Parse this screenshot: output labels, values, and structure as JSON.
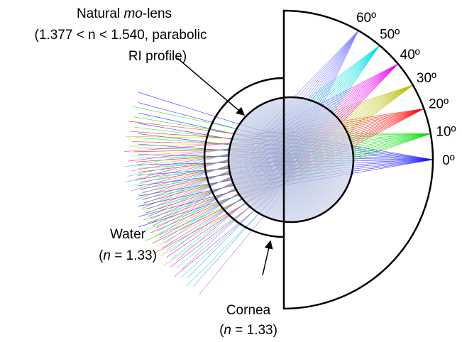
{
  "lens_label": {
    "name_start": "Natural ",
    "name_italic": "mo",
    "name_end": "-lens",
    "line2": "(1.377 < n < 1.540, parabolic",
    "line3": "RI profile)"
  },
  "angle_labels": [
    "0º",
    "10º",
    "20º",
    "30º",
    "40º",
    "50º",
    "60º"
  ],
  "water": {
    "name": "Water",
    "open": "(",
    "symbol": "n",
    "rest": " = 1.33)"
  },
  "cornea": {
    "name": "Cornea",
    "open": "(",
    "symbol": "n",
    "rest": " = 1.33)"
  }
}
